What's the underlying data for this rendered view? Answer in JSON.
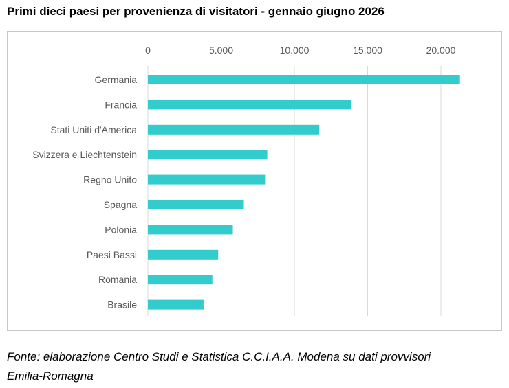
{
  "title": "Primi dieci paesi per provenienza di visitatori - gennaio giugno 2026",
  "source": {
    "line1": "Fonte: elaborazione Centro Studi e Statistica C.C.I.A.A. Modena su dati provvisori",
    "line2": "Emilia-Romagna"
  },
  "colors": {
    "bar": "#33CCCC",
    "grid": "#D9D9D9",
    "text": "#595959"
  },
  "chart_data": {
    "type": "bar",
    "orientation": "horizontal",
    "title": "Primi dieci paesi per provenienza di visitatori - gennaio giugno 2026",
    "xlabel": "",
    "ylabel": "",
    "xlim": [
      0,
      22500
    ],
    "ticks": [
      0,
      5000,
      10000,
      15000,
      20000
    ],
    "tick_labels": [
      "0",
      "5.000",
      "10.000",
      "15.000",
      "20.000"
    ],
    "axis_position": "top",
    "grid": true,
    "legend": "none",
    "categories": [
      "Germania",
      "Francia",
      "Stati Uniti d'America",
      "Svizzera e Liechtenstein",
      "Regno Unito",
      "Spagna",
      "Polonia",
      "Paesi Bassi",
      "Romania",
      "Brasile"
    ],
    "values": [
      21300,
      13900,
      11700,
      8150,
      8000,
      6550,
      5800,
      4800,
      4400,
      3800
    ]
  }
}
